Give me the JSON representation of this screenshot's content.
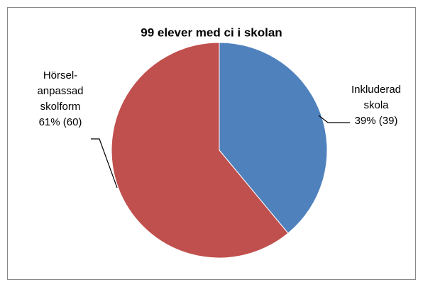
{
  "chart_data": {
    "type": "pie",
    "title": "99 elever med ci i skolan",
    "categories": [
      "Inkluderad skola",
      "Hörsel-anpassad skolform"
    ],
    "values": [
      39,
      61
    ],
    "value_labels": [
      "39% (39)",
      "61% (60)"
    ],
    "colors": [
      "#4f81bd",
      "#c0504d"
    ]
  }
}
